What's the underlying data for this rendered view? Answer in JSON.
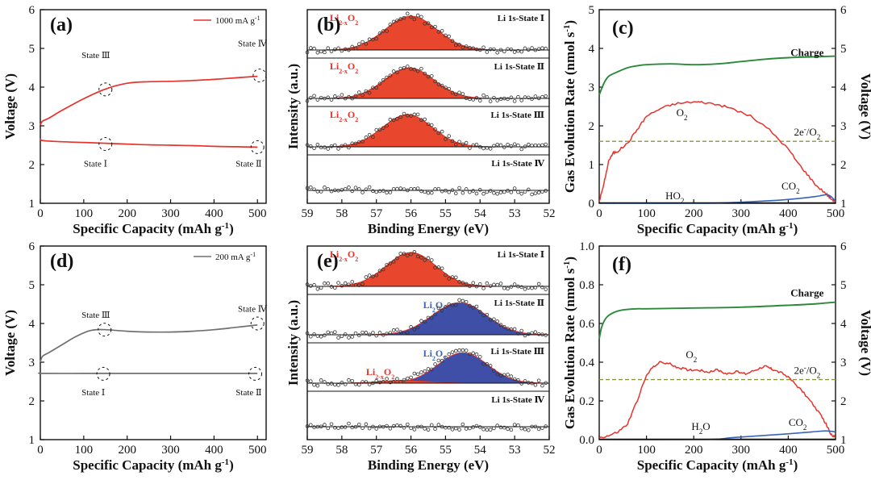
{
  "colors": {
    "red": "#e8322c",
    "fill_red": "#e8472d",
    "fill_blue": "#3f4fa8",
    "green": "#2a8a3a",
    "blue": "#3a63b8",
    "gray": "#707070",
    "dash": "#8a9a2e",
    "black": "#111111"
  },
  "chart_data": [
    {
      "id": "a",
      "type": "line",
      "panel_label": "(a)",
      "xlabel": "Specific Capacity (mAh g",
      "xlabel_sup": "-1",
      "xlabel_end": ")",
      "ylabel": "Voltage (V)",
      "xlim": [
        0,
        520
      ],
      "ylim": [
        1,
        6
      ],
      "xticks": [
        0,
        100,
        200,
        300,
        400,
        500
      ],
      "yticks": [
        1,
        2,
        3,
        4,
        5,
        6
      ],
      "legend": {
        "label": "1000 mA g",
        "sup": "-1",
        "color": "#e8322c"
      },
      "series": [
        {
          "name": "charge",
          "color": "#e8322c",
          "x": [
            0,
            5,
            20,
            50,
            100,
            150,
            200,
            250,
            300,
            350,
            400,
            450,
            500
          ],
          "y": [
            3.02,
            3.12,
            3.2,
            3.4,
            3.7,
            3.95,
            4.1,
            4.14,
            4.15,
            4.17,
            4.2,
            4.24,
            4.28
          ]
        },
        {
          "name": "discharge",
          "color": "#e8322c",
          "x": [
            0,
            5,
            50,
            100,
            150,
            200,
            250,
            300,
            350,
            400,
            450,
            500
          ],
          "y": [
            2.68,
            2.62,
            2.59,
            2.57,
            2.55,
            2.53,
            2.51,
            2.5,
            2.49,
            2.47,
            2.46,
            2.45
          ]
        }
      ],
      "markers": [
        {
          "label": "State Ⅰ",
          "x": 150,
          "y": 2.53,
          "label_x": 100,
          "label_y": 1.95
        },
        {
          "label": "State Ⅱ",
          "x": 500,
          "y": 2.45,
          "label_x": 450,
          "label_y": 1.95
        },
        {
          "label": "State Ⅲ",
          "x": 150,
          "y": 3.94,
          "label_x": 95,
          "label_y": 4.75
        },
        {
          "label": "State Ⅳ",
          "x": 505,
          "y": 4.3,
          "label_x": 455,
          "label_y": 5.05
        }
      ]
    },
    {
      "id": "b",
      "type": "line",
      "panel_label": "(b)",
      "xlabel": "Binding Energy (eV)",
      "ylabel": "Intensity (a.u.)",
      "xlim": [
        59,
        52
      ],
      "xticks": [
        59,
        58,
        57,
        56,
        55,
        54,
        53,
        52
      ],
      "strips": [
        {
          "title": "Li 1s-State Ⅰ",
          "peaks": [
            {
              "center": 56.0,
              "height": 1.0,
              "width": 0.75,
              "color": "#e8472d",
              "label": "Li",
              "label_sub": "2-x",
              "label_end": "O",
              "label_sub2": "2",
              "label_color": "#e8322c"
            }
          ]
        },
        {
          "title": "Li 1s-State Ⅱ",
          "peaks": [
            {
              "center": 56.05,
              "height": 0.9,
              "width": 0.72,
              "color": "#e8472d",
              "label": "Li",
              "label_sub": "2-x",
              "label_end": "O",
              "label_sub2": "2",
              "label_color": "#e8322c"
            }
          ]
        },
        {
          "title": "Li 1s-State Ⅲ",
          "peaks": [
            {
              "center": 56.1,
              "height": 0.95,
              "width": 0.72,
              "color": "#e8472d",
              "label": "Li",
              "label_sub": "2-x",
              "label_end": "O",
              "label_sub2": "2",
              "label_color": "#e8322c"
            }
          ]
        },
        {
          "title": "Li 1s-State Ⅳ",
          "peaks": []
        }
      ]
    },
    {
      "id": "c",
      "type": "line",
      "panel_label": "(c)",
      "xlabel": "Specific Capacity (mAh g",
      "xlabel_sup": "-1",
      "xlabel_end": ")",
      "ylabel": "Gas Evolution Rate (nmol s",
      "ylabel_sup": "-1",
      "ylabel_end": ")",
      "y2label": "Voltage (V)",
      "xlim": [
        0,
        500
      ],
      "ylim": [
        0,
        5
      ],
      "y2lim": [
        1,
        6
      ],
      "xticks": [
        0,
        100,
        200,
        300,
        400,
        500
      ],
      "yticks": [
        0,
        1,
        2,
        3,
        4,
        5
      ],
      "y2ticks": [
        1,
        2,
        3,
        4,
        5,
        6
      ],
      "series": [
        {
          "name": "Charge",
          "axis": "y2",
          "color": "#2a8a3a",
          "x": [
            0,
            10,
            20,
            40,
            60,
            80,
            100,
            150,
            200,
            250,
            300,
            350,
            400,
            450,
            500
          ],
          "y": [
            3.8,
            4.1,
            4.28,
            4.4,
            4.5,
            4.55,
            4.58,
            4.6,
            4.58,
            4.6,
            4.66,
            4.72,
            4.76,
            4.78,
            4.8
          ]
        },
        {
          "name": "O2",
          "axis": "y",
          "color": "#e8322c",
          "x": [
            0,
            10,
            20,
            30,
            40,
            60,
            80,
            100,
            130,
            160,
            200,
            220,
            250,
            280,
            320,
            360,
            400,
            420,
            440,
            460,
            480,
            490,
            500
          ],
          "y": [
            0.05,
            0.5,
            1.1,
            1.3,
            1.35,
            1.55,
            1.9,
            2.25,
            2.45,
            2.57,
            2.62,
            2.61,
            2.55,
            2.45,
            2.25,
            1.9,
            1.4,
            1.05,
            0.75,
            0.45,
            0.25,
            0.12,
            0.05
          ]
        },
        {
          "name": "CO2",
          "axis": "y",
          "color": "#3a63b8",
          "x": [
            0,
            200,
            260,
            320,
            380,
            420,
            460,
            480,
            490,
            500
          ],
          "y": [
            0,
            0,
            0.01,
            0.04,
            0.08,
            0.12,
            0.18,
            0.22,
            0.18,
            0.05
          ]
        },
        {
          "name": "HO2",
          "axis": "y",
          "color": "#111111",
          "x": [
            0,
            500
          ],
          "y": [
            0.01,
            0.01
          ]
        }
      ],
      "hline": {
        "y": 1.6,
        "color": "#8a9a2e"
      },
      "labels": [
        {
          "text": "Charge",
          "x": 440,
          "y": 3.8,
          "color": "#2a8a3a",
          "bold": true
        },
        {
          "text": "O",
          "sub": "2",
          "x": 175,
          "y": 2.25,
          "color": "#e8322c"
        },
        {
          "text": "2e",
          "sup": "-",
          "end": "/O",
          "sub": "2",
          "x": 440,
          "y": 1.75,
          "color": "#111111"
        },
        {
          "text": "CO",
          "sub": "2",
          "x": 405,
          "y": 0.35,
          "color": "#3a63b8"
        },
        {
          "text": "HO",
          "sub": "2",
          "x": 160,
          "y": 0.1,
          "color": "#111111"
        }
      ]
    },
    {
      "id": "d",
      "type": "line",
      "panel_label": "(d)",
      "xlabel": "Specific Capacity (mAh g",
      "xlabel_sup": "-1",
      "xlabel_end": ")",
      "ylabel": "Voltage (V)",
      "xlim": [
        0,
        520
      ],
      "ylim": [
        1,
        6
      ],
      "xticks": [
        0,
        100,
        200,
        300,
        400,
        500
      ],
      "yticks": [
        1,
        2,
        3,
        4,
        5,
        6
      ],
      "legend": {
        "label": "200 mA g",
        "sup": "-1",
        "color": "#707070"
      },
      "series": [
        {
          "name": "charge",
          "color": "#707070",
          "x": [
            0,
            5,
            20,
            50,
            80,
            110,
            130,
            150,
            200,
            250,
            300,
            350,
            400,
            450,
            500
          ],
          "y": [
            3.0,
            3.15,
            3.25,
            3.45,
            3.65,
            3.8,
            3.84,
            3.84,
            3.8,
            3.78,
            3.78,
            3.8,
            3.84,
            3.9,
            3.96
          ]
        },
        {
          "name": "discharge",
          "color": "#707070",
          "x": [
            0,
            5,
            100,
            200,
            300,
            400,
            500
          ],
          "y": [
            2.72,
            2.71,
            2.71,
            2.71,
            2.71,
            2.71,
            2.71
          ]
        }
      ],
      "markers": [
        {
          "label": "State Ⅰ",
          "x": 145,
          "y": 2.7,
          "label_x": 95,
          "label_y": 2.15
        },
        {
          "label": "State Ⅱ",
          "x": 495,
          "y": 2.7,
          "label_x": 450,
          "label_y": 2.15
        },
        {
          "label": "State Ⅲ",
          "x": 148,
          "y": 3.84,
          "label_x": 95,
          "label_y": 4.15
        },
        {
          "label": "State Ⅳ",
          "x": 500,
          "y": 4.0,
          "label_x": 455,
          "label_y": 4.3
        }
      ]
    },
    {
      "id": "e",
      "type": "line",
      "panel_label": "(e)",
      "xlabel": "Binding Energy (eV)",
      "ylabel": "Intensity (a.u.)",
      "xlim": [
        59,
        52
      ],
      "xticks": [
        59,
        58,
        57,
        56,
        55,
        54,
        53,
        52
      ],
      "strips": [
        {
          "title": "Li 1s-State Ⅰ",
          "peaks": [
            {
              "center": 56.0,
              "height": 1.0,
              "width": 0.72,
              "color": "#e8472d",
              "label": "Li",
              "label_sub": "2-x",
              "label_end": "O",
              "label_sub2": "2",
              "label_color": "#e8322c"
            }
          ]
        },
        {
          "title": "Li 1s-State Ⅱ",
          "peaks": [
            {
              "center": 54.6,
              "height": 0.95,
              "width": 0.78,
              "color": "#3f4fa8",
              "label": "Li",
              "label_sub": "2",
              "label_end": "O",
              "label_sub2": "2",
              "label_color": "#3a63b8"
            }
          ]
        },
        {
          "title": "Li 1s-State Ⅲ",
          "peaks": [
            {
              "center": 54.5,
              "height": 0.9,
              "width": 0.72,
              "color": "#3f4fa8",
              "label": "Li",
              "label_sub": "2",
              "label_end": "O",
              "label_sub2": "2",
              "label_color": "#3a63b8"
            },
            {
              "center": 56.2,
              "height": 0.08,
              "width": 0.7,
              "color": "#e8472d",
              "label": "Li",
              "label_sub": "2-x",
              "label_end": "O",
              "label_sub2": "2",
              "label_color": "#e8322c"
            }
          ]
        },
        {
          "title": "Li 1s-State Ⅳ",
          "peaks": []
        }
      ]
    },
    {
      "id": "f",
      "type": "line",
      "panel_label": "(f)",
      "xlabel": "Specific Capacity (mAh g",
      "xlabel_sup": "-1",
      "xlabel_end": ")",
      "ylabel": "Gas Evolution Rate (nmol s",
      "ylabel_sup": "-1",
      "ylabel_end": ")",
      "y2label": "Voltage (V)",
      "xlim": [
        0,
        500
      ],
      "ylim": [
        0,
        1.0
      ],
      "y2lim": [
        1,
        6
      ],
      "xticks": [
        0,
        100,
        200,
        300,
        400,
        500
      ],
      "yticks": [
        0.0,
        0.2,
        0.4,
        0.6,
        0.8,
        1.0
      ],
      "y2ticks": [
        1,
        2,
        3,
        4,
        5,
        6
      ],
      "series": [
        {
          "name": "Charge",
          "axis": "y2",
          "color": "#2a8a3a",
          "x": [
            0,
            5,
            15,
            30,
            50,
            80,
            100,
            200,
            300,
            400,
            450,
            500
          ],
          "y": [
            3.6,
            3.9,
            4.15,
            4.28,
            4.35,
            4.38,
            4.38,
            4.4,
            4.42,
            4.47,
            4.5,
            4.55
          ]
        },
        {
          "name": "O2",
          "axis": "y",
          "color": "#e8322c",
          "x": [
            0,
            20,
            40,
            60,
            80,
            100,
            115,
            130,
            150,
            170,
            190,
            210,
            230,
            250,
            270,
            290,
            310,
            330,
            350,
            360,
            370,
            390,
            410,
            430,
            450,
            470,
            480,
            490,
            500
          ],
          "y": [
            0.01,
            0.02,
            0.04,
            0.08,
            0.2,
            0.33,
            0.38,
            0.4,
            0.39,
            0.37,
            0.36,
            0.36,
            0.35,
            0.36,
            0.34,
            0.35,
            0.34,
            0.36,
            0.38,
            0.37,
            0.36,
            0.34,
            0.3,
            0.25,
            0.19,
            0.12,
            0.08,
            0.03,
            0.01
          ]
        },
        {
          "name": "CO2",
          "axis": "y",
          "color": "#3a63b8",
          "x": [
            0,
            220,
            280,
            340,
            400,
            450,
            480,
            500
          ],
          "y": [
            0,
            0,
            0.01,
            0.02,
            0.03,
            0.04,
            0.045,
            0.04
          ]
        },
        {
          "name": "H2O",
          "axis": "y",
          "color": "#111111",
          "x": [
            0,
            500
          ],
          "y": [
            0.002,
            0.002
          ]
        }
      ],
      "hline": {
        "y": 0.31,
        "color": "#8a9a2e"
      },
      "labels": [
        {
          "text": "Charge",
          "x": 440,
          "y": 0.74,
          "color": "#2a8a3a",
          "bold": true
        },
        {
          "text": "O",
          "sub": "2",
          "x": 195,
          "y": 0.42,
          "color": "#e8322c"
        },
        {
          "text": "2e",
          "sup": "-",
          "end": "/O",
          "sub": "2",
          "x": 440,
          "y": 0.34,
          "color": "#111111"
        },
        {
          "text": "CO",
          "sub": "2",
          "x": 420,
          "y": 0.07,
          "color": "#3a63b8"
        },
        {
          "text": "H",
          "sub": "2",
          "end": "O",
          "x": 215,
          "y": 0.05,
          "color": "#111111"
        }
      ]
    }
  ]
}
